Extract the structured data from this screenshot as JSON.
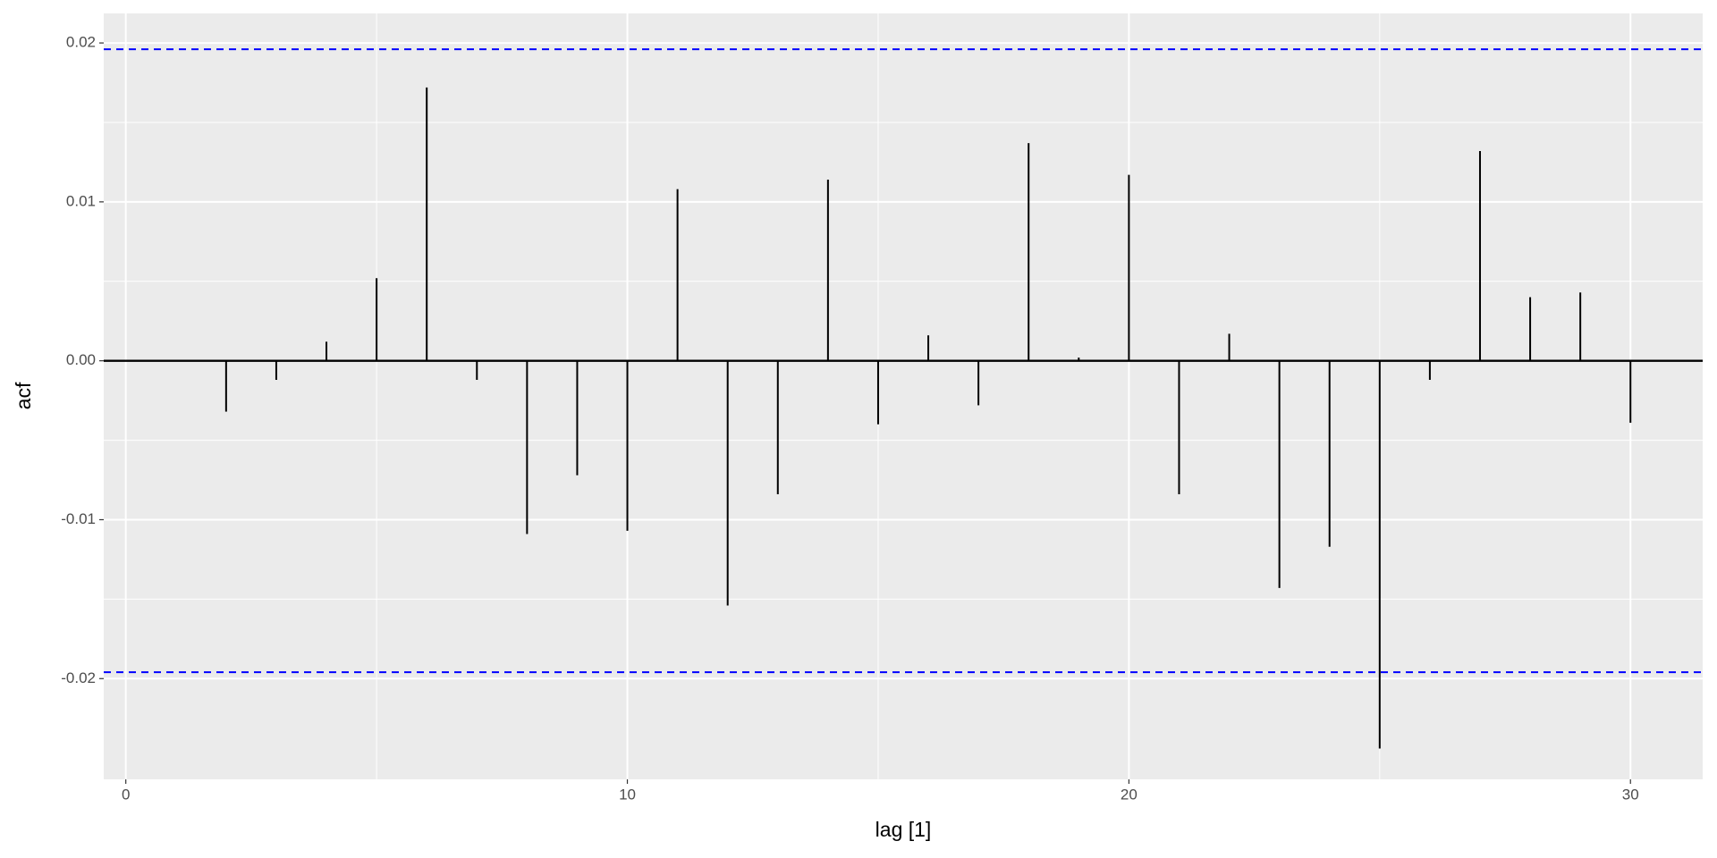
{
  "chart_data": {
    "type": "acf",
    "x_label": "lag [1]",
    "y_label": "acf",
    "x": [
      1,
      2,
      3,
      4,
      5,
      6,
      7,
      8,
      9,
      10,
      11,
      12,
      13,
      14,
      15,
      16,
      17,
      18,
      19,
      20,
      21,
      22,
      23,
      24,
      25,
      26,
      27,
      28,
      29,
      30
    ],
    "values": [
      0.0,
      -0.0032,
      -0.0012,
      0.0012,
      0.0052,
      0.0172,
      -0.0012,
      -0.0109,
      -0.0072,
      -0.0107,
      0.0108,
      -0.0154,
      -0.0084,
      0.0114,
      -0.004,
      0.0016,
      -0.0028,
      0.0137,
      0.0002,
      0.0117,
      -0.0084,
      0.0017,
      -0.0143,
      -0.0117,
      -0.0244,
      -0.0012,
      0.0132,
      0.004,
      0.0043,
      -0.0039
    ],
    "color": "#000000",
    "ci": [
      -0.0196,
      0.0196
    ],
    "ci_color": "#0000ff",
    "xlim": [
      -0.44,
      31.44
    ],
    "xticks": [
      0,
      10,
      20,
      30
    ],
    "ylim": [
      -0.02634,
      0.02186
    ],
    "yticks": [
      -0.02,
      -0.01,
      {
        "value": 0,
        "label": "0.00"
      },
      0.01,
      0.02
    ],
    "grid": true
  }
}
